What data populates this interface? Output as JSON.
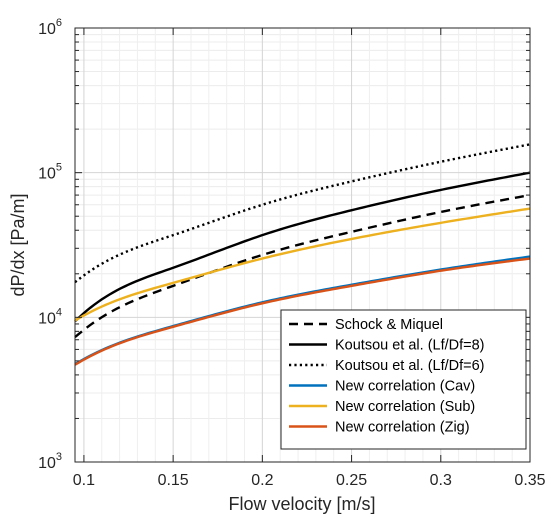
{
  "chart_data": {
    "type": "line",
    "xlabel": "Flow velocity [m/s]",
    "ylabel": "dP/dx [Pa/m]",
    "xlim": [
      0.095,
      0.35
    ],
    "ylim": [
      1000,
      1000000
    ],
    "yscale": "log",
    "grid": true,
    "minor_grid": true,
    "legend_position": "lower-right",
    "x_ticks": [
      0.1,
      0.15,
      0.2,
      0.25,
      0.3,
      0.35
    ],
    "x_tick_labels": [
      "0.1",
      "0.15",
      "0.2",
      "0.25",
      "0.3",
      "0.35"
    ],
    "y_ticks": [
      1000,
      10000,
      100000,
      1000000
    ],
    "y_tick_labels": [
      {
        "base": "10",
        "exp": "3"
      },
      {
        "base": "10",
        "exp": "4"
      },
      {
        "base": "10",
        "exp": "5"
      },
      {
        "base": "10",
        "exp": "6"
      }
    ],
    "x": [
      0.095,
      0.1,
      0.15,
      0.2,
      0.25,
      0.3,
      0.35
    ],
    "series": [
      {
        "name": "Schock & Miquel",
        "color": "#000000",
        "style": "dashed",
        "values": [
          7300,
          8200,
          16500,
          27000,
          39000,
          53500,
          70000
        ]
      },
      {
        "name": "Koutsou et al. (Lf/Df=8)",
        "color": "#000000",
        "style": "solid",
        "values": [
          9400,
          10700,
          22000,
          37000,
          55000,
          76000,
          100000
        ]
      },
      {
        "name": "Koutsou et al. (Lf/Df=6)",
        "color": "#000000",
        "style": "dotted",
        "values": [
          17500,
          19500,
          37000,
          60000,
          87000,
          119000,
          157000
        ]
      },
      {
        "name": "New correlation (Cav)",
        "color": "#0072BD",
        "style": "solid",
        "values": [
          4750,
          5150,
          8700,
          12700,
          16800,
          21400,
          26300
        ]
      },
      {
        "name": "New correlation (Sub)",
        "color": "#EDB120",
        "style": "solid",
        "values": [
          9500,
          10300,
          17300,
          25500,
          34800,
          45000,
          56500
        ]
      },
      {
        "name": "New correlation (Zig)",
        "color": "#D95319",
        "style": "solid",
        "values": [
          4700,
          5100,
          8600,
          12500,
          16500,
          21000,
          25500
        ]
      }
    ]
  }
}
